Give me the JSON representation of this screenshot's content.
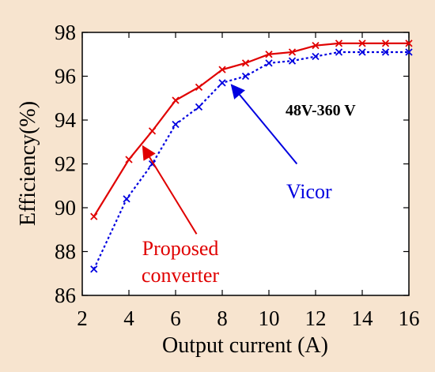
{
  "chart_data": {
    "type": "line",
    "title": "",
    "xlabel": "Output current (A)",
    "ylabel": "Efficiency(%)",
    "xlim": [
      2,
      16
    ],
    "ylim": [
      86,
      98
    ],
    "xticks": [
      "2",
      "4",
      "6",
      "8",
      "10",
      "12",
      "14",
      "16"
    ],
    "yticks": [
      "86",
      "88",
      "90",
      "92",
      "94",
      "96",
      "98"
    ],
    "grid": false,
    "legend": "none",
    "series": [
      {
        "name": "Proposed converter",
        "color": "#e00000",
        "line_style": "solid",
        "marker": "x",
        "x": [
          2.5,
          4,
          5,
          6,
          7,
          8,
          9,
          10,
          11,
          12,
          13,
          14,
          15,
          16
        ],
        "y": [
          89.6,
          92.2,
          93.5,
          94.9,
          95.5,
          96.3,
          96.6,
          97.0,
          97.1,
          97.4,
          97.5,
          97.5,
          97.5,
          97.5
        ]
      },
      {
        "name": "Vicor",
        "color": "#0000e0",
        "line_style": "dotted",
        "marker": "x",
        "x": [
          2.5,
          3.9,
          5,
          6,
          7,
          8,
          9,
          10,
          11,
          12,
          13,
          14,
          15,
          16
        ],
        "y": [
          87.2,
          90.4,
          92.0,
          93.8,
          94.6,
          95.7,
          96.0,
          96.6,
          96.7,
          96.9,
          97.1,
          97.1,
          97.1,
          97.1
        ]
      }
    ],
    "annotations": [
      {
        "text": "48V-360 V",
        "color": "#000000",
        "weight": "bold"
      },
      {
        "text": "Vicor",
        "color": "#0000e0",
        "arrow_from": [
          11.2,
          92.0
        ],
        "arrow_to": [
          8.4,
          95.6
        ]
      },
      {
        "text": "Proposed",
        "color": "#e00000",
        "arrow_from": [
          6.9,
          88.8
        ],
        "arrow_to": [
          4.6,
          92.8
        ]
      },
      {
        "text": "converter",
        "color": "#e00000"
      }
    ]
  }
}
